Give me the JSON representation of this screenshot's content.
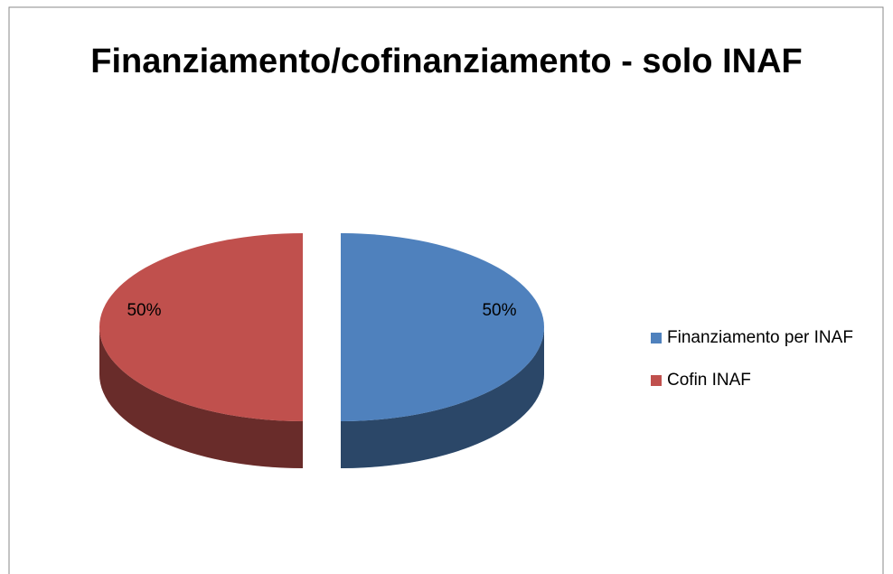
{
  "chart_data": {
    "type": "pie",
    "title": "Finanziamento/cofinanziamento - solo INAF",
    "categories": [
      "Finanziamento per INAF",
      "Cofin INAF"
    ],
    "values": [
      50,
      50
    ],
    "value_labels": [
      "50%",
      "50%"
    ],
    "colors": [
      "#4f81bd",
      "#c0504d"
    ],
    "legend": "right"
  }
}
